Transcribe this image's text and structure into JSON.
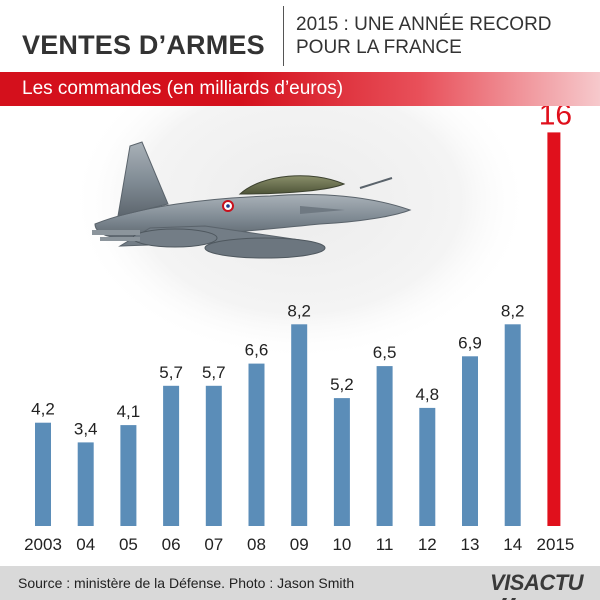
{
  "header": {
    "title": "VENTES D’ARMES",
    "subtitle_line1": "2015 : UNE ANNÉE RECORD",
    "subtitle_line2": "POUR LA FRANCE"
  },
  "banner": {
    "label": "Les commandes (en milliards d’euros)"
  },
  "footer": {
    "source": "Source : ministère de la Défense. Photo : Jason Smith",
    "brand_part1": "VIS",
    "brand_part2": "ACTU"
  },
  "image": {
    "icon": "fighter-jet-photo"
  },
  "colors": {
    "bar": "#5b8db8",
    "highlight_bar": "#e0101c",
    "banner": "#d4101c"
  },
  "chart_data": {
    "type": "bar",
    "title": "Les commandes (en milliards d’euros)",
    "categories": [
      "2003",
      "04",
      "05",
      "06",
      "07",
      "08",
      "09",
      "10",
      "11",
      "12",
      "13",
      "14",
      "2015"
    ],
    "values": [
      4.2,
      3.4,
      4.1,
      5.7,
      5.7,
      6.6,
      8.2,
      5.2,
      6.5,
      4.8,
      6.9,
      8.2,
      16
    ],
    "value_labels": [
      "4,2",
      "3,4",
      "4,1",
      "5,7",
      "5,7",
      "6,6",
      "8,2",
      "5,2",
      "6,5",
      "4,8",
      "6,9",
      "8,2",
      "16"
    ],
    "highlight_index": 12,
    "xlabel": "",
    "ylabel": "",
    "ylim": [
      0,
      16
    ],
    "grid": false,
    "legend": "none"
  }
}
